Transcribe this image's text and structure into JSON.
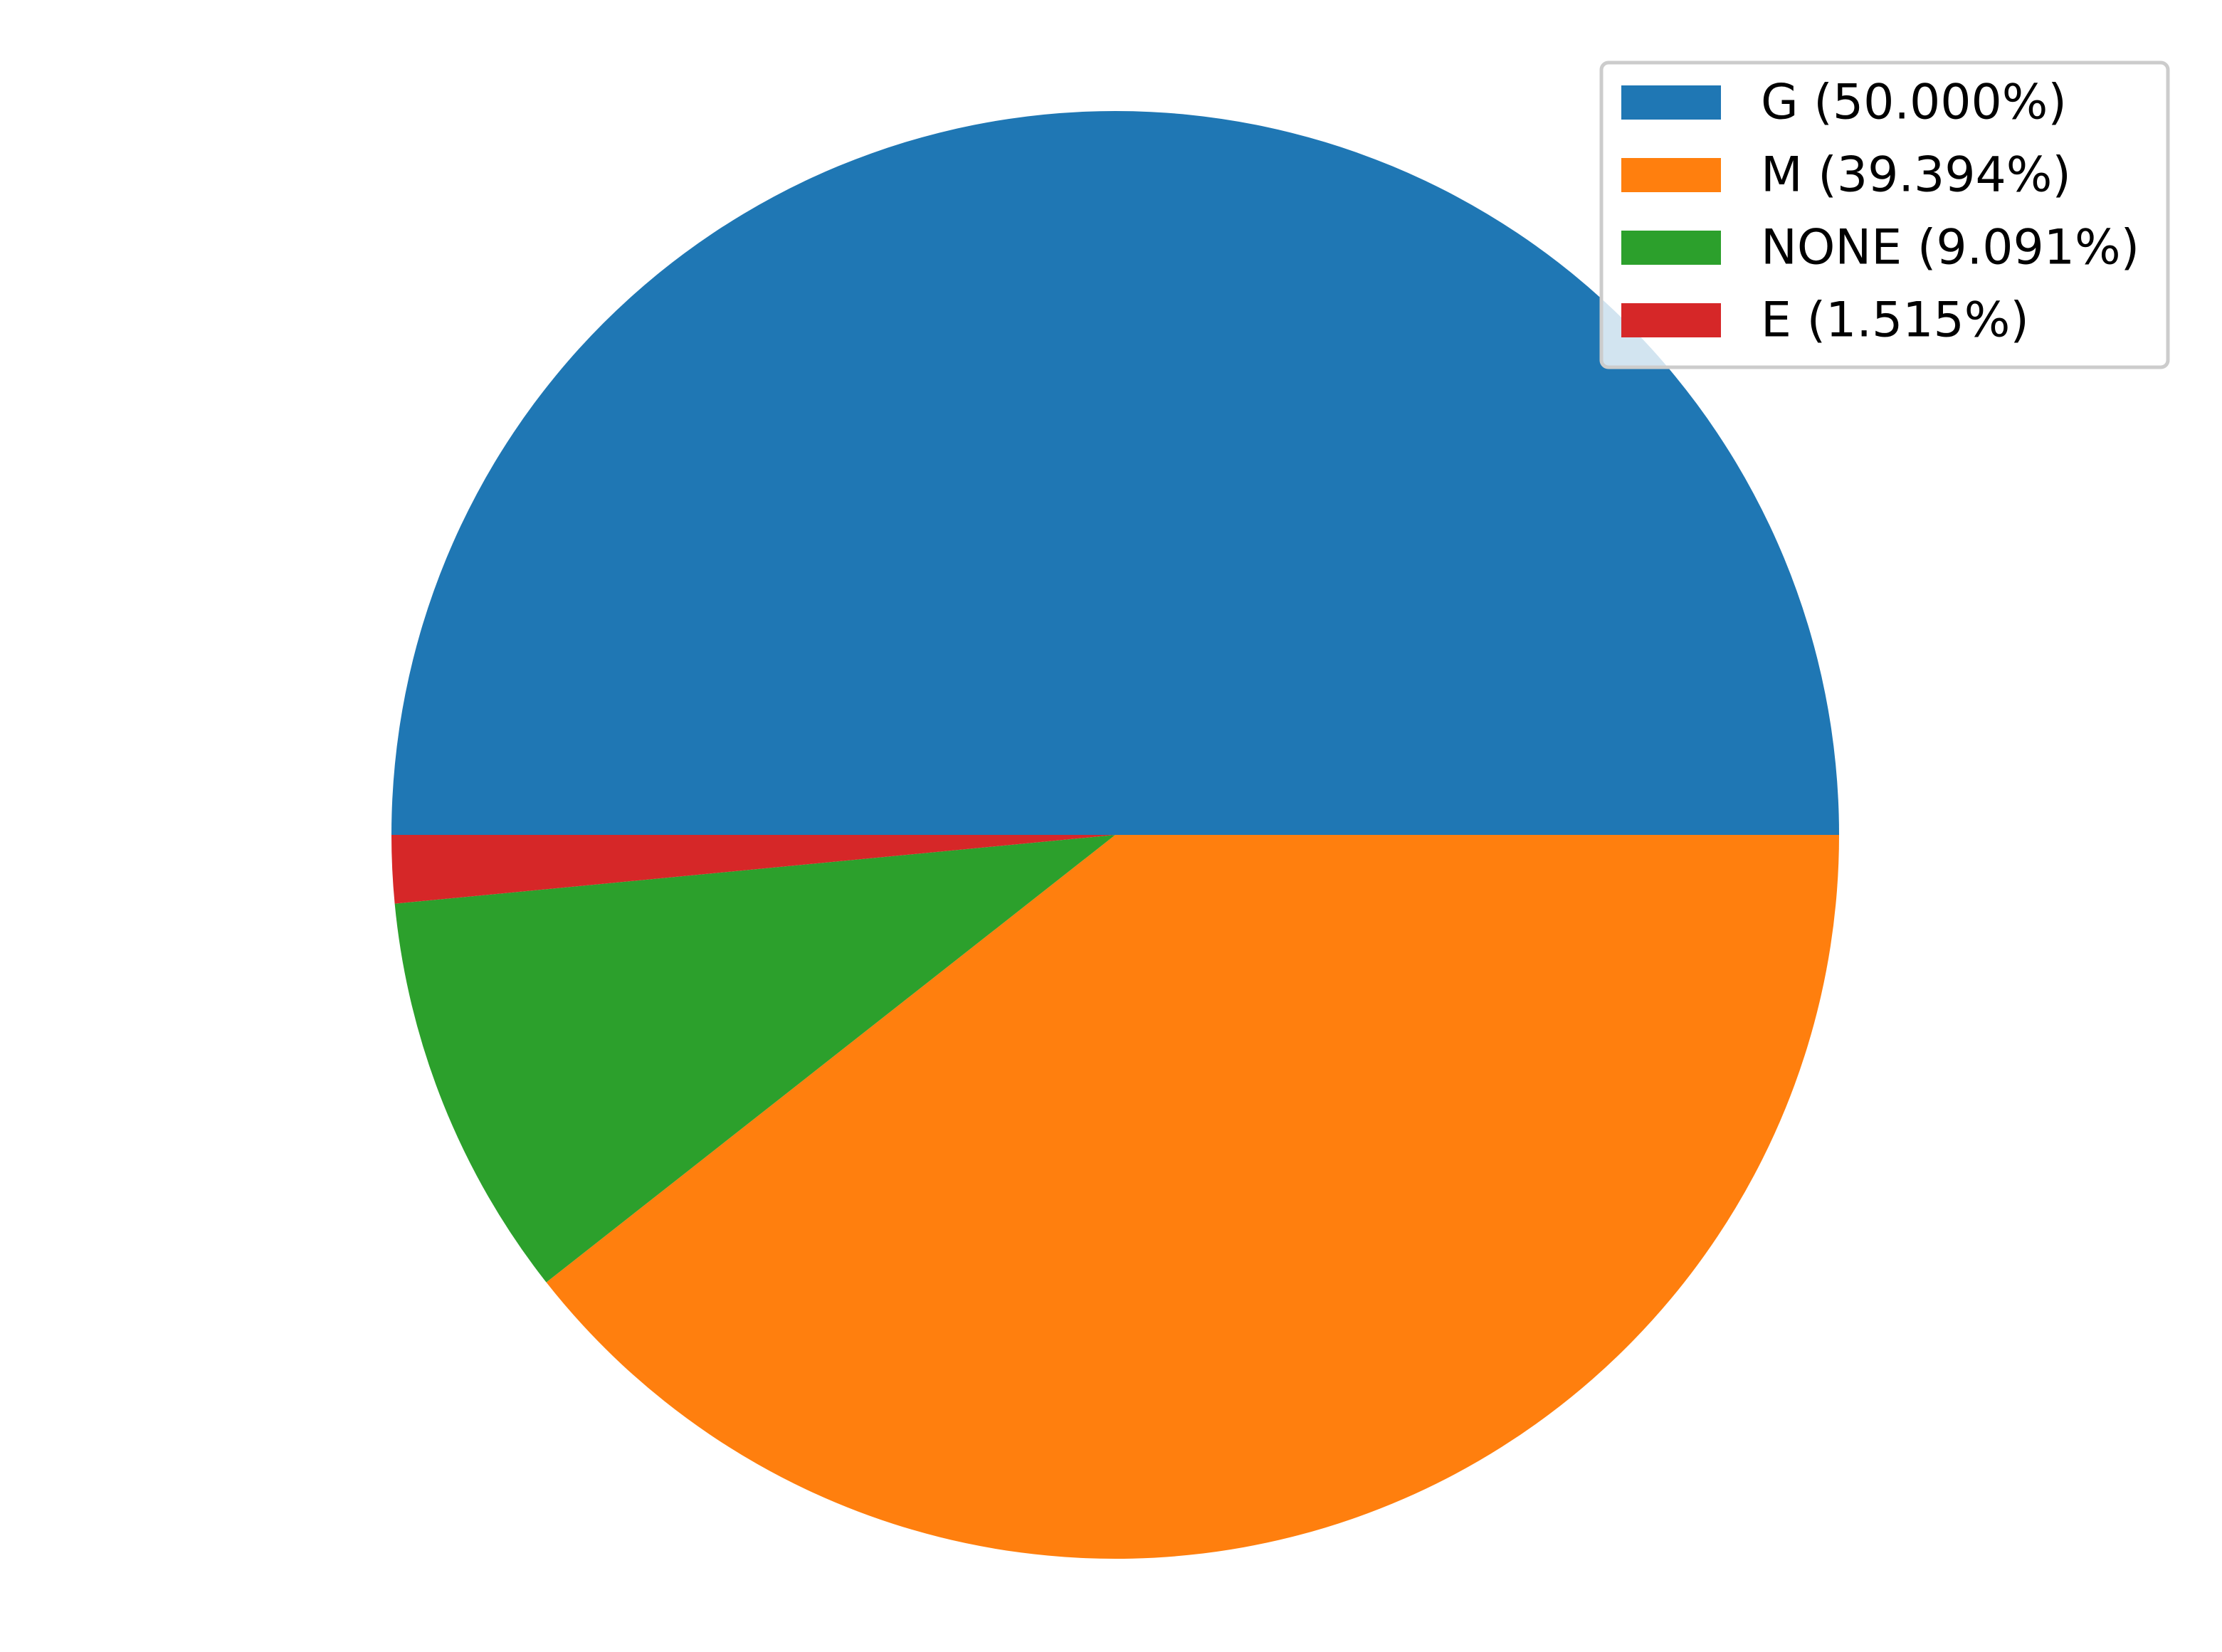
{
  "chart_data": {
    "type": "pie",
    "title": "",
    "slices": [
      {
        "label": "G (50.000%)",
        "value": 50.0,
        "color": "#1f77b4"
      },
      {
        "label": "M (39.394%)",
        "value": 39.394,
        "color": "#ff7f0e"
      },
      {
        "label": "NONE (9.091%)",
        "value": 9.091,
        "color": "#2ca02c"
      },
      {
        "label": "E (1.515%)",
        "value": 1.515,
        "color": "#d62728"
      }
    ],
    "start_angle_deg": 180,
    "direction": "clockwise",
    "legend_position": "top-right"
  }
}
